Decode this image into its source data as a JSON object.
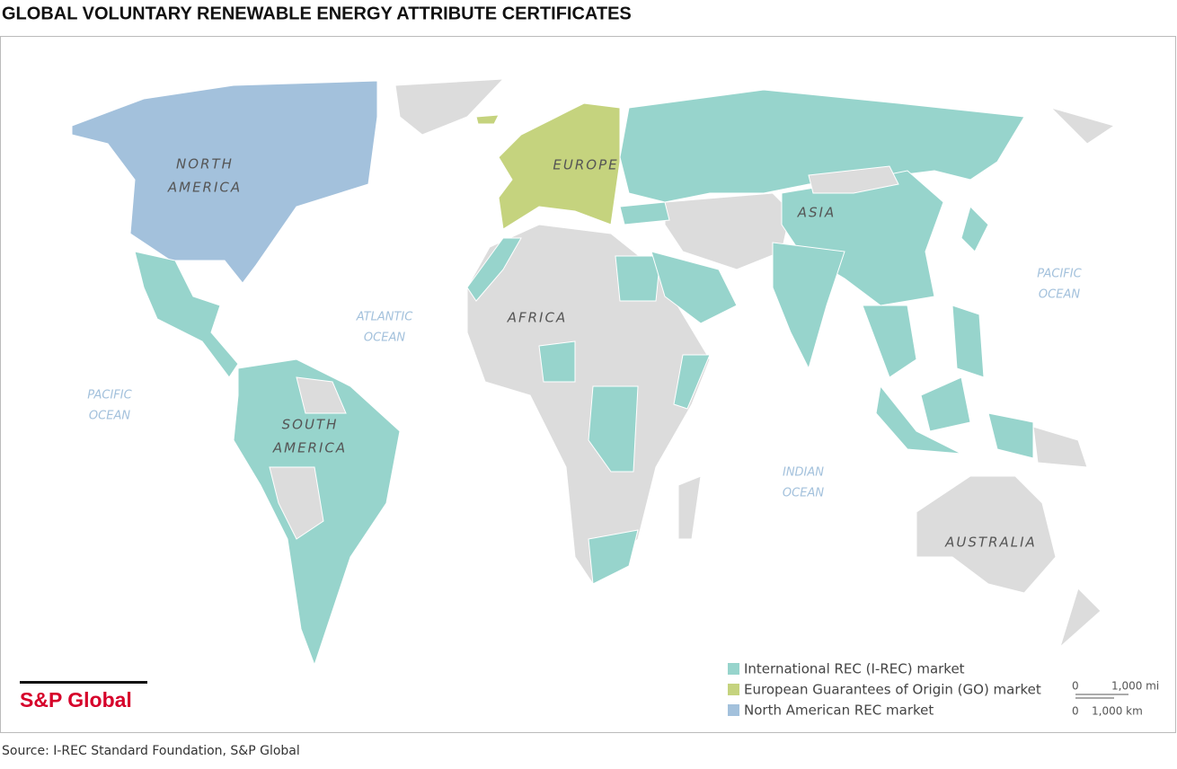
{
  "header": {
    "title": "GLOBAL VOLUNTARY RENEWABLE ENERGY ATTRIBUTE CERTIFICATES"
  },
  "map": {
    "regions": [
      {
        "lines": [
          "NORTH",
          "AMERICA"
        ]
      },
      {
        "lines": [
          "EUROPE"
        ]
      },
      {
        "lines": [
          "ASIA"
        ]
      },
      {
        "lines": [
          "AFRICA"
        ]
      },
      {
        "lines": [
          "SOUTH",
          "AMERICA"
        ]
      },
      {
        "lines": [
          "AUSTRALIA"
        ]
      }
    ],
    "oceans": [
      {
        "lines": [
          "ATLANTIC",
          "OCEAN"
        ]
      },
      {
        "lines": [
          "PACIFIC",
          "OCEAN"
        ]
      },
      {
        "lines": [
          "PACIFIC",
          "OCEAN"
        ]
      },
      {
        "lines": [
          "INDIAN",
          "OCEAN"
        ]
      }
    ]
  },
  "legend": [
    {
      "label": "International REC (I-REC) market",
      "color": "#97d4cc"
    },
    {
      "label": "European Guarantees of Origin (GO) market",
      "color": "#c5d37e"
    },
    {
      "label": "North American REC market",
      "color": "#a3c1dc"
    }
  ],
  "logo": "S&P Global",
  "scale": {
    "miles": {
      "zero": "0",
      "label": "1,000 mi"
    },
    "km": {
      "zero": "0",
      "label": "1,000 km"
    }
  },
  "source": "Source: I-REC Standard Foundation, S&P Global"
}
